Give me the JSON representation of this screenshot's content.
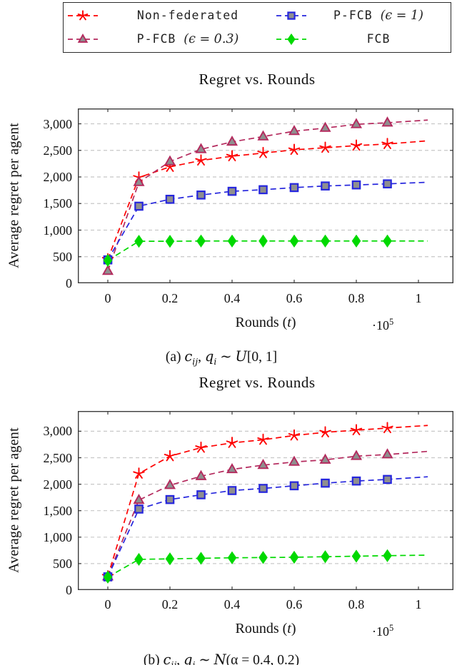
{
  "colors": {
    "grid": "#c8c8c8",
    "axis": "#3d3d3d",
    "text": "#111111"
  },
  "legend": {
    "entries": [
      {
        "key": "non_federated",
        "label": "Non-federated",
        "math": "",
        "color": "#fe0000",
        "marker": "star",
        "marker_fill": "none"
      },
      {
        "key": "pfcb_eps1",
        "label": "P-FCB",
        "math": "(ϵ = 1)",
        "color": "#2626dd",
        "marker": "square",
        "marker_fill": "#8f8f8f"
      },
      {
        "key": "pfcb_eps03",
        "label": "P-FCB",
        "math": "(ϵ = 0.3)",
        "color": "#b4295d",
        "marker": "triangle",
        "marker_fill": "#8f8f8f"
      },
      {
        "key": "fcb",
        "label": "FCB",
        "math": "",
        "color": "#00d900",
        "marker": "diamond",
        "marker_fill": "#00d900"
      }
    ]
  },
  "chart_data": [
    {
      "type": "line",
      "title": "Regret vs. Rounds",
      "ylabel": "Average regret per agent",
      "xlabel_pre": "Rounds (",
      "xlabel_var": "t",
      "xlabel_post": ")",
      "x_multiplier_base": "·10",
      "x_multiplier_exp": "5",
      "x_axis_units": "rounds t, times 10^5",
      "x_ticks": {
        "values": [
          0,
          0.2,
          0.4,
          0.6,
          0.8,
          1
        ],
        "labels": [
          "0",
          "0.2",
          "0.4",
          "0.6",
          "0.8",
          "1"
        ]
      },
      "y_ticks": {
        "values": [
          0,
          500,
          1000,
          1500,
          2000,
          2500,
          3000
        ],
        "labels": [
          "0",
          "500",
          "1,000",
          "1,500",
          "2,000",
          "2,500",
          "3,000"
        ]
      },
      "grid": "horizontal-dashed",
      "x": [
        0,
        0.1,
        0.2,
        0.3,
        0.4,
        0.5,
        0.6,
        0.7,
        0.8,
        0.9,
        1.03
      ],
      "tail_has_marker": false,
      "series": [
        {
          "key": "non_federated",
          "name": "Non-federated",
          "values": [
            450,
            1990,
            2190,
            2310,
            2390,
            2450,
            2510,
            2550,
            2590,
            2620,
            2680
          ]
        },
        {
          "key": "pfcb_eps03",
          "name": "P-FCB (ϵ = 0.3)",
          "values": [
            230,
            1900,
            2290,
            2520,
            2660,
            2760,
            2860,
            2920,
            2990,
            3020,
            3070
          ]
        },
        {
          "key": "pfcb_eps1",
          "name": "P-FCB (ϵ = 1)",
          "values": [
            440,
            1450,
            1580,
            1660,
            1730,
            1760,
            1800,
            1830,
            1850,
            1870,
            1900
          ]
        },
        {
          "key": "fcb",
          "name": "FCB",
          "values": [
            430,
            790,
            790,
            795,
            795,
            795,
            795,
            795,
            795,
            795,
            795
          ]
        }
      ],
      "caption": {
        "prefix": "(a) ",
        "v1": "c",
        "v1_sub": "ij",
        "sep": ", ",
        "v2": "q",
        "v2_sub": "i",
        "op": " ∼ ",
        "fn": "U",
        "args": "[0, 1]"
      }
    },
    {
      "type": "line",
      "title": "Regret vs. Rounds",
      "ylabel": "Average regret per agent",
      "xlabel_pre": "Rounds (",
      "xlabel_var": "t",
      "xlabel_post": ")",
      "x_multiplier_base": "·10",
      "x_multiplier_exp": "5",
      "x_axis_units": "rounds t, times 10^5",
      "x_ticks": {
        "values": [
          0,
          0.2,
          0.4,
          0.6,
          0.8,
          1
        ],
        "labels": [
          "0",
          "0.2",
          "0.4",
          "0.6",
          "0.8",
          "1"
        ]
      },
      "y_ticks": {
        "values": [
          0,
          500,
          1000,
          1500,
          2000,
          2500,
          3000
        ],
        "labels": [
          "0",
          "500",
          "1,000",
          "1,500",
          "2,000",
          "2,500",
          "3,000"
        ]
      },
      "grid": "horizontal-dashed",
      "x": [
        0,
        0.1,
        0.2,
        0.3,
        0.4,
        0.5,
        0.6,
        0.7,
        0.8,
        0.9,
        1.03
      ],
      "tail_has_marker": false,
      "series": [
        {
          "key": "non_federated",
          "name": "Non-federated",
          "values": [
            260,
            2200,
            2530,
            2690,
            2780,
            2840,
            2920,
            2980,
            3020,
            3060,
            3110
          ]
        },
        {
          "key": "pfcb_eps03",
          "name": "P-FCB (ϵ = 0.3)",
          "values": [
            255,
            1700,
            1980,
            2150,
            2280,
            2360,
            2420,
            2460,
            2530,
            2560,
            2620
          ]
        },
        {
          "key": "pfcb_eps1",
          "name": "P-FCB (ϵ = 1)",
          "values": [
            250,
            1530,
            1710,
            1800,
            1880,
            1920,
            1970,
            2020,
            2060,
            2090,
            2140
          ]
        },
        {
          "key": "fcb",
          "name": "FCB",
          "values": [
            245,
            580,
            590,
            600,
            610,
            615,
            620,
            630,
            640,
            650,
            660
          ]
        }
      ],
      "caption": {
        "prefix": "(b) ",
        "v1": "c",
        "v1_sub": "ij",
        "sep": ", ",
        "v2": "q",
        "v2_sub": "i",
        "op": " ∼ ",
        "fn": "N",
        "args": "(α = 0.4, 0.2)"
      }
    }
  ]
}
